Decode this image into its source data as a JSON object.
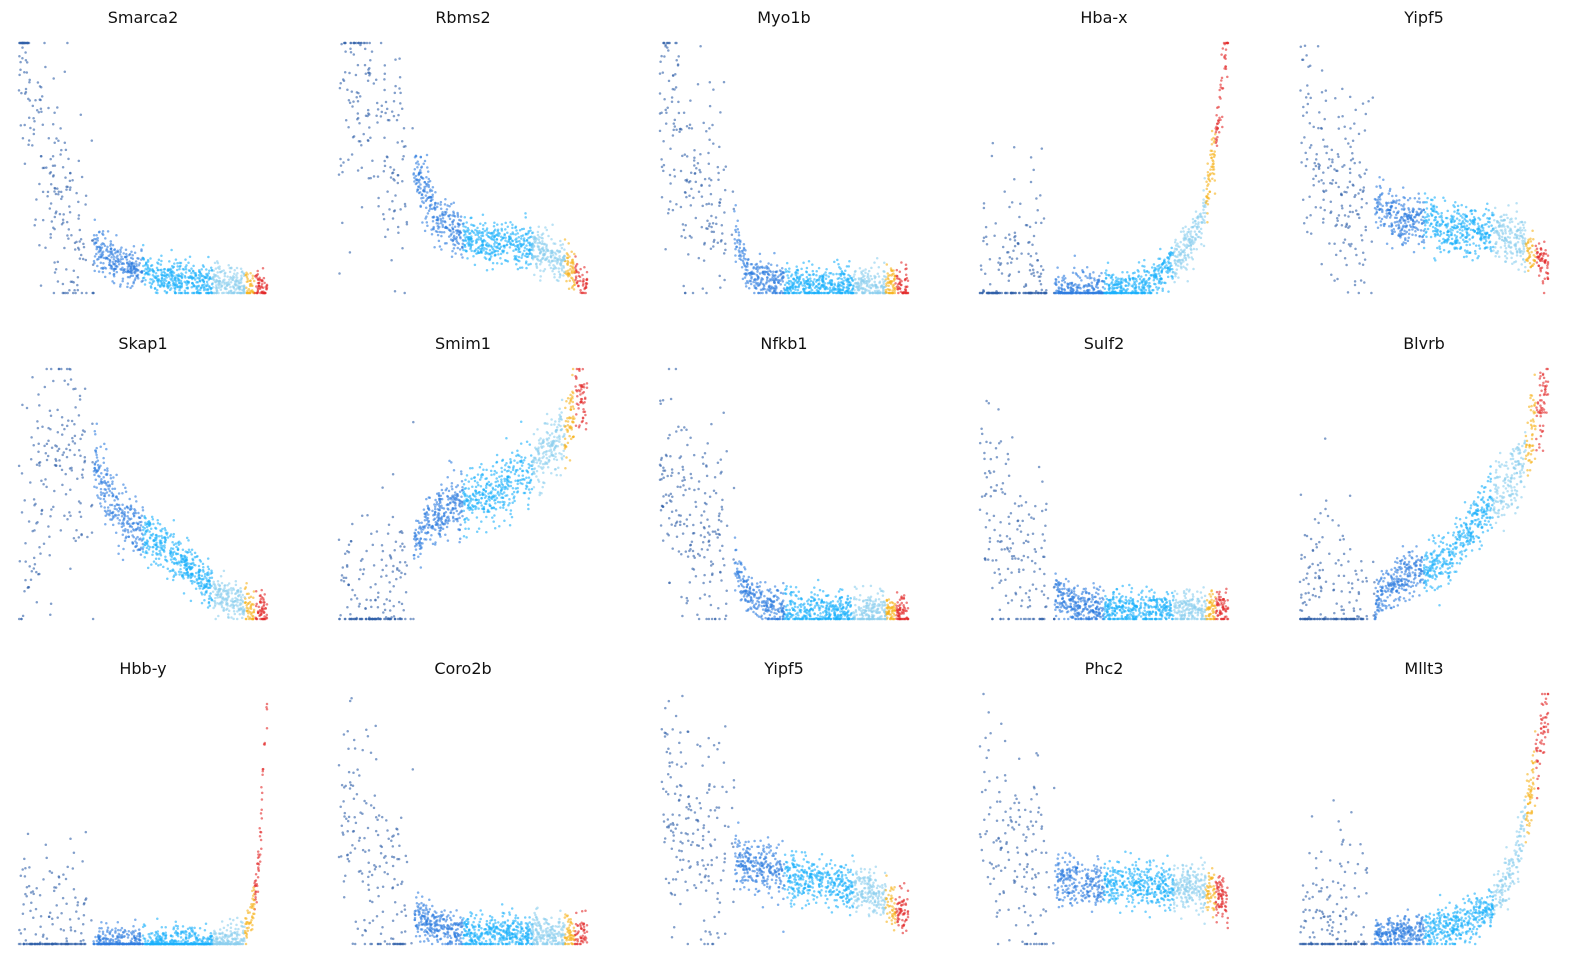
{
  "chart_data": {
    "type": "scatter",
    "layout": "grid",
    "rows": 3,
    "cols": 5,
    "x_meaning": "pseudotime ordering (0 = start, 1 = end)",
    "y_meaning": "relative expression (0 = low, 1 = high)",
    "xlim": [
      0,
      1
    ],
    "ylim": [
      0,
      1
    ],
    "axes_visible": false,
    "grid": false,
    "legend": "none",
    "stage_colors": [
      "#2f5fa8",
      "#2f7de0",
      "#1ab0fb",
      "#8ccfee",
      "#f6b21b",
      "#e32a2a"
    ],
    "stage_breaks": [
      0.02,
      0.3,
      0.5,
      0.78,
      0.91,
      0.95,
      1.0
    ],
    "panels": [
      {
        "title": "Smarca2",
        "x": [
          0.0,
          0.02,
          0.08,
          0.18,
          0.3,
          0.45,
          0.6,
          0.78,
          0.91,
          0.95,
          1.0
        ],
        "y": [
          1.0,
          0.95,
          0.6,
          0.3,
          0.18,
          0.1,
          0.06,
          0.04,
          0.02,
          0.02,
          0.02
        ]
      },
      {
        "title": "Rbms2",
        "x": [
          0.0,
          0.02,
          0.08,
          0.15,
          0.22,
          0.3,
          0.4,
          0.5,
          0.6,
          0.7,
          0.8,
          0.9,
          0.95,
          1.0
        ],
        "y": [
          0.6,
          0.85,
          0.8,
          0.65,
          0.6,
          0.5,
          0.3,
          0.22,
          0.2,
          0.2,
          0.18,
          0.13,
          0.08,
          0.05
        ]
      },
      {
        "title": "Myo1b",
        "x": [
          0.0,
          0.02,
          0.08,
          0.15,
          0.25,
          0.3,
          0.35,
          0.45,
          0.6,
          0.78,
          0.91,
          0.95,
          1.0
        ],
        "y": [
          0.7,
          0.72,
          0.5,
          0.4,
          0.35,
          0.25,
          0.08,
          0.04,
          0.03,
          0.03,
          0.03,
          0.03,
          0.03
        ]
      },
      {
        "title": "Hba-x",
        "x": [
          0.0,
          0.3,
          0.5,
          0.65,
          0.7,
          0.78,
          0.85,
          0.9,
          0.92,
          0.95,
          1.0
        ],
        "y": [
          0.0,
          0.0,
          0.01,
          0.03,
          0.06,
          0.12,
          0.2,
          0.3,
          0.42,
          0.62,
          1.0
        ]
      },
      {
        "title": "Yipf5",
        "x": [
          0.0,
          0.02,
          0.08,
          0.2,
          0.3,
          0.4,
          0.5,
          0.6,
          0.7,
          0.78,
          0.85,
          0.91,
          0.95,
          1.0
        ],
        "y": [
          0.65,
          0.7,
          0.45,
          0.38,
          0.35,
          0.3,
          0.28,
          0.26,
          0.25,
          0.24,
          0.23,
          0.2,
          0.15,
          0.1
        ]
      },
      {
        "title": "Skap1",
        "x": [
          0.0,
          0.02,
          0.06,
          0.12,
          0.2,
          0.3,
          0.4,
          0.5,
          0.6,
          0.7,
          0.78,
          0.91,
          0.95,
          1.0
        ],
        "y": [
          0.15,
          0.25,
          0.4,
          0.62,
          0.72,
          0.62,
          0.42,
          0.35,
          0.28,
          0.2,
          0.12,
          0.05,
          0.03,
          0.03
        ]
      },
      {
        "title": "Smim1",
        "x": [
          0.0,
          0.05,
          0.1,
          0.2,
          0.3,
          0.4,
          0.5,
          0.6,
          0.7,
          0.78,
          0.85,
          0.91,
          0.95,
          1.0
        ],
        "y": [
          0.02,
          0.03,
          0.05,
          0.1,
          0.3,
          0.42,
          0.47,
          0.5,
          0.55,
          0.62,
          0.68,
          0.75,
          0.85,
          0.9
        ]
      },
      {
        "title": "Nfkb1",
        "x": [
          0.0,
          0.02,
          0.08,
          0.15,
          0.25,
          0.3,
          0.35,
          0.45,
          0.6,
          0.78,
          0.91,
          0.95,
          1.0
        ],
        "y": [
          0.55,
          0.55,
          0.45,
          0.35,
          0.3,
          0.2,
          0.1,
          0.05,
          0.03,
          0.03,
          0.03,
          0.03,
          0.03
        ]
      },
      {
        "title": "Sulf2",
        "x": [
          0.0,
          0.02,
          0.08,
          0.2,
          0.3,
          0.4,
          0.5,
          0.6,
          0.78,
          0.91,
          0.95,
          1.0
        ],
        "y": [
          0.55,
          0.55,
          0.3,
          0.2,
          0.1,
          0.05,
          0.04,
          0.04,
          0.04,
          0.04,
          0.04,
          0.04
        ]
      },
      {
        "title": "Blvrb",
        "x": [
          0.0,
          0.2,
          0.3,
          0.35,
          0.4,
          0.5,
          0.6,
          0.7,
          0.78,
          0.85,
          0.91,
          0.95,
          1.0
        ],
        "y": [
          0.02,
          0.02,
          0.05,
          0.12,
          0.17,
          0.2,
          0.25,
          0.38,
          0.48,
          0.55,
          0.65,
          0.8,
          0.9
        ]
      },
      {
        "title": "Hbb-y",
        "x": [
          0.0,
          0.5,
          0.78,
          0.9,
          0.91,
          0.93,
          0.95,
          0.97,
          0.98,
          1.0
        ],
        "y": [
          0.0,
          0.0,
          0.0,
          0.02,
          0.04,
          0.08,
          0.18,
          0.35,
          0.6,
          1.0
        ]
      },
      {
        "title": "Coro2b",
        "x": [
          0.0,
          0.02,
          0.08,
          0.15,
          0.22,
          0.3,
          0.4,
          0.5,
          0.6,
          0.78,
          0.91,
          0.95,
          1.0
        ],
        "y": [
          0.55,
          0.6,
          0.45,
          0.3,
          0.2,
          0.12,
          0.06,
          0.05,
          0.04,
          0.04,
          0.04,
          0.04,
          0.04
        ]
      },
      {
        "title": "Yipf5",
        "x": [
          0.0,
          0.02,
          0.08,
          0.2,
          0.3,
          0.4,
          0.5,
          0.6,
          0.7,
          0.78,
          0.85,
          0.91,
          0.95,
          1.0
        ],
        "y": [
          0.6,
          0.62,
          0.5,
          0.4,
          0.35,
          0.3,
          0.28,
          0.26,
          0.24,
          0.22,
          0.2,
          0.18,
          0.14,
          0.1
        ]
      },
      {
        "title": "Phc2",
        "x": [
          0.0,
          0.02,
          0.08,
          0.15,
          0.2,
          0.3,
          0.4,
          0.5,
          0.6,
          0.7,
          0.78,
          0.91,
          0.95,
          1.0
        ],
        "y": [
          0.45,
          0.5,
          0.38,
          0.32,
          0.28,
          0.26,
          0.25,
          0.24,
          0.25,
          0.24,
          0.23,
          0.22,
          0.2,
          0.18
        ]
      },
      {
        "title": "Mllt3",
        "x": [
          0.0,
          0.1,
          0.3,
          0.5,
          0.6,
          0.7,
          0.78,
          0.85,
          0.91,
          0.95,
          1.0
        ],
        "y": [
          0.02,
          0.02,
          0.03,
          0.05,
          0.07,
          0.1,
          0.15,
          0.28,
          0.5,
          0.72,
          0.95
        ]
      }
    ]
  }
}
